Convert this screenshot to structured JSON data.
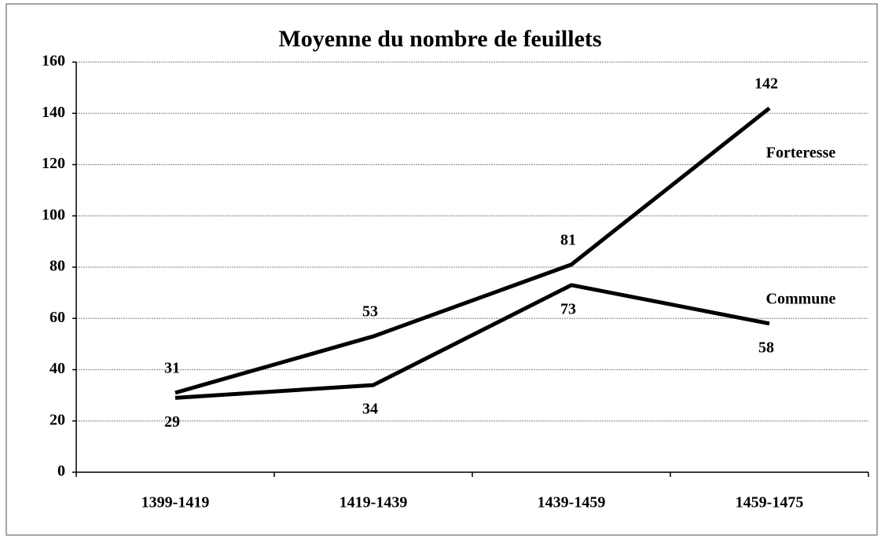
{
  "chart_data": {
    "type": "line",
    "title": "Moyenne du nombre de feuillets",
    "categories": [
      "1399-1419",
      "1419-1439",
      "1439-1459",
      "1459-1475"
    ],
    "series": [
      {
        "name": "Forteresse",
        "color": "#000000",
        "values": [
          31,
          53,
          81,
          142
        ]
      },
      {
        "name": "Commune",
        "color": "#000000",
        "values": [
          29,
          34,
          73,
          58
        ]
      }
    ],
    "ylim": [
      0,
      160
    ],
    "yticks": [
      0,
      20,
      40,
      60,
      80,
      100,
      120,
      140,
      160
    ],
    "grid": true
  }
}
